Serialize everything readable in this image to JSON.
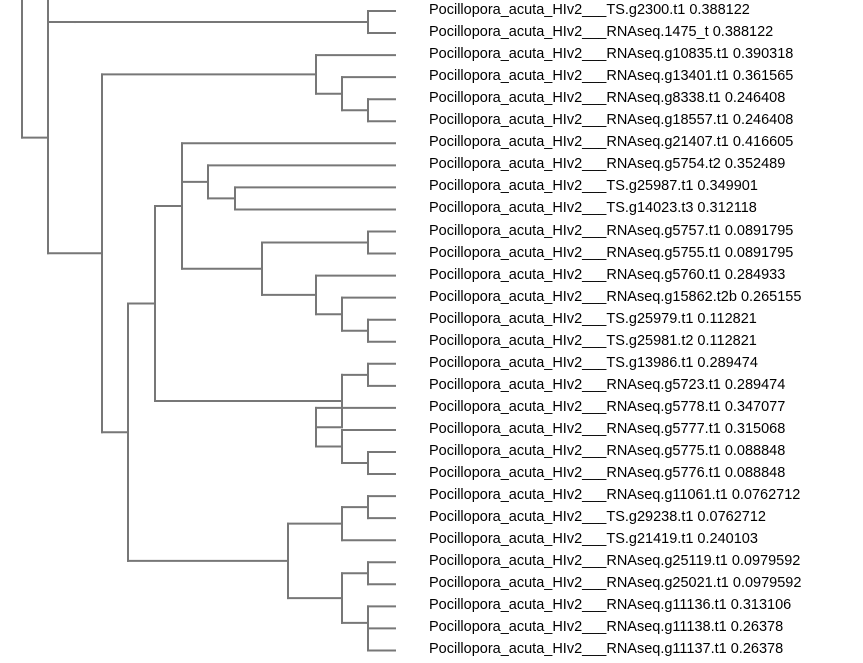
{
  "colors": {
    "branch": "#777777",
    "text": "#000000",
    "background": "#ffffff"
  },
  "leaves": [
    "Pocillopora_acuta_HIv2___TS.g2300.t1 0.388122",
    "Pocillopora_acuta_HIv2___RNAseq.1475_t 0.388122",
    "Pocillopora_acuta_HIv2___RNAseq.g10835.t1 0.390318",
    "Pocillopora_acuta_HIv2___RNAseq.g13401.t1 0.361565",
    "Pocillopora_acuta_HIv2___RNAseq.g8338.t1 0.246408",
    "Pocillopora_acuta_HIv2___RNAseq.g18557.t1 0.246408",
    "Pocillopora_acuta_HIv2___RNAseq.g21407.t1 0.416605",
    "Pocillopora_acuta_HIv2___RNAseq.g5754.t2 0.352489",
    "Pocillopora_acuta_HIv2___TS.g25987.t1 0.349901",
    "Pocillopora_acuta_HIv2___TS.g14023.t3 0.312118",
    "Pocillopora_acuta_HIv2___RNAseq.g5757.t1 0.0891795",
    "Pocillopora_acuta_HIv2___RNAseq.g5755.t1 0.0891795",
    "Pocillopora_acuta_HIv2___RNAseq.g5760.t1 0.284933",
    "Pocillopora_acuta_HIv2___RNAseq.g15862.t2b 0.265155",
    "Pocillopora_acuta_HIv2___TS.g25979.t1 0.112821",
    "Pocillopora_acuta_HIv2___TS.g25981.t2 0.112821",
    "Pocillopora_acuta_HIv2___TS.g13986.t1 0.289474",
    "Pocillopora_acuta_HIv2___RNAseq.g5723.t1 0.289474",
    "Pocillopora_acuta_HIv2___RNAseq.g5778.t1 0.347077",
    "Pocillopora_acuta_HIv2___RNAseq.g5777.t1 0.315068",
    "Pocillopora_acuta_HIv2___RNAseq.g5775.t1 0.088848",
    "Pocillopora_acuta_HIv2___RNAseq.g5776.t1 0.088848",
    "Pocillopora_acuta_HIv2___RNAseq.g11061.t1 0.0762712",
    "Pocillopora_acuta_HIv2___TS.g29238.t1 0.0762712",
    "Pocillopora_acuta_HIv2___TS.g21419.t1 0.240103",
    "Pocillopora_acuta_HIv2___RNAseq.g25119.t1 0.0979592",
    "Pocillopora_acuta_HIv2___RNAseq.g25021.t1 0.0979592",
    "Pocillopora_acuta_HIv2___RNAseq.g11136.t1 0.313106",
    "Pocillopora_acuta_HIv2___RNAseq.g11138.t1 0.26378",
    "Pocillopora_acuta_HIv2___RNAseq.g11137.t1 0.26378"
  ]
}
